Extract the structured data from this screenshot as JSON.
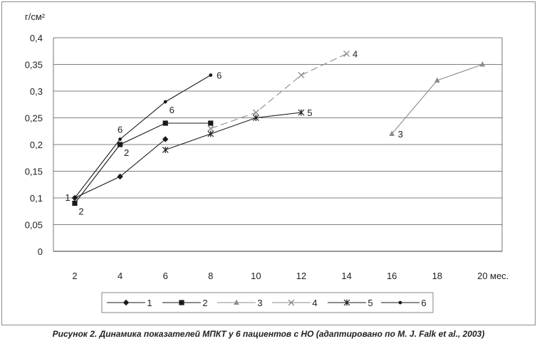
{
  "chart_data": {
    "type": "line",
    "ylabel": "г/см²",
    "xlabel": "мес.",
    "ylim": [
      0,
      0.4
    ],
    "yticks": [
      "0",
      "0,05",
      "0,1",
      "0,15",
      "0,2",
      "0,25",
      "0,3",
      "0,35",
      "0,4"
    ],
    "xticks": [
      "2",
      "4",
      "6",
      "8",
      "10",
      "12",
      "14",
      "16",
      "18",
      "20"
    ],
    "grid": "horizontal",
    "legend_position": "bottom",
    "series": [
      {
        "name": "1",
        "marker": "diamond",
        "line": "solid",
        "color": "#1a1a1a",
        "x": [
          2,
          4,
          6
        ],
        "y": [
          0.1,
          0.14,
          0.21
        ]
      },
      {
        "name": "2",
        "marker": "square",
        "line": "solid",
        "color": "#1a1a1a",
        "x": [
          2,
          4,
          6,
          8
        ],
        "y": [
          0.09,
          0.2,
          0.24,
          0.24
        ]
      },
      {
        "name": "3",
        "marker": "triangle",
        "line": "solid",
        "color": "#8c8c8c",
        "x": [
          16,
          18,
          20
        ],
        "y": [
          0.22,
          0.32,
          0.35
        ]
      },
      {
        "name": "4",
        "marker": "x",
        "line": "dashed",
        "color": "#8c8c8c",
        "x": [
          8,
          10,
          12,
          14
        ],
        "y": [
          0.23,
          0.26,
          0.33,
          0.37
        ]
      },
      {
        "name": "5",
        "marker": "star",
        "line": "solid",
        "color": "#1a1a1a",
        "x": [
          6,
          8,
          10,
          12
        ],
        "y": [
          0.19,
          0.22,
          0.25,
          0.26
        ]
      },
      {
        "name": "6",
        "marker": "dot",
        "line": "solid",
        "color": "#1a1a1a",
        "x": [
          2,
          4,
          6,
          8
        ],
        "y": [
          0.1,
          0.21,
          0.28,
          0.33
        ]
      }
    ],
    "annotations": [
      {
        "text": "1",
        "x": 2,
        "y": 0.1,
        "pos": "left"
      },
      {
        "text": "2",
        "x": 2,
        "y": 0.09,
        "pos": "below-right"
      },
      {
        "text": "6",
        "x": 4,
        "y": 0.21,
        "pos": "above"
      },
      {
        "text": "2",
        "x": 4,
        "y": 0.2,
        "pos": "below-right"
      },
      {
        "text": "6",
        "x": 6,
        "y": 0.28,
        "pos": "below-right"
      },
      {
        "text": "6",
        "x": 8,
        "y": 0.33,
        "pos": "right"
      },
      {
        "text": "5",
        "x": 12,
        "y": 0.26,
        "pos": "right"
      },
      {
        "text": "4",
        "x": 14,
        "y": 0.37,
        "pos": "right"
      },
      {
        "text": "3",
        "x": 16,
        "y": 0.22,
        "pos": "right"
      }
    ]
  },
  "caption": "Рисунок 2. Динамика показателей МПКТ у 6 пациентов с НО (адаптировано по M. J. Falk et al., 2003)"
}
